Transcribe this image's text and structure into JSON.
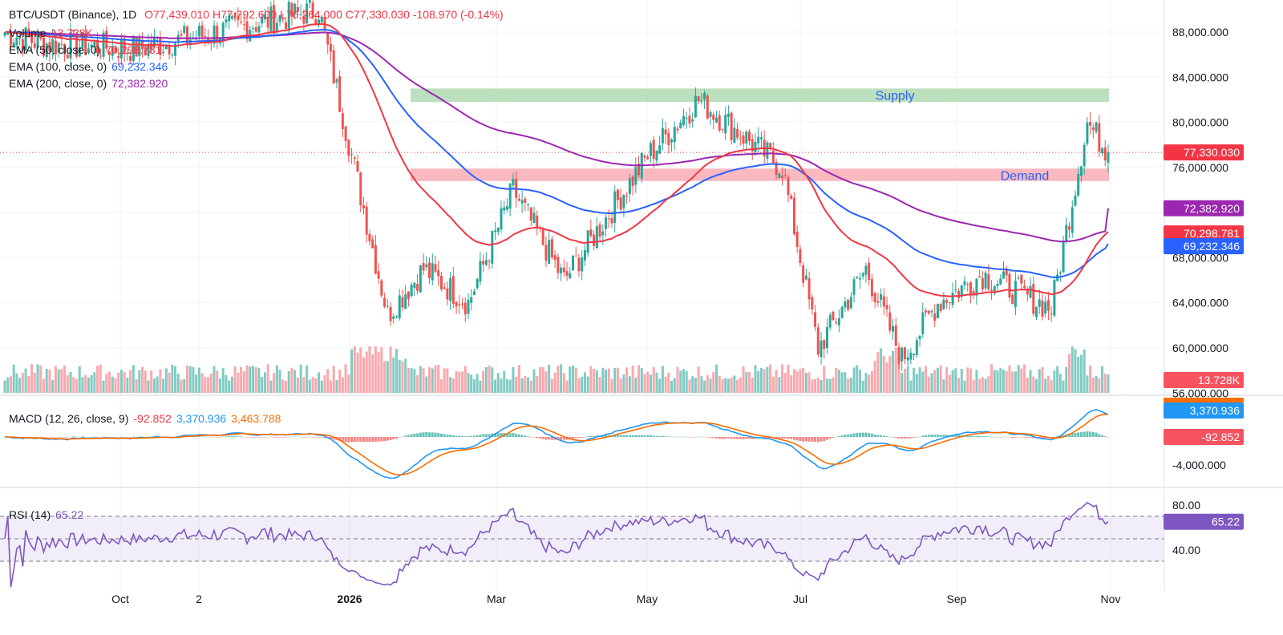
{
  "header": {
    "symbol": "BTC/USDT (Binance), 1D",
    "ohlc": "O77,439.010  H77,792.600  L76,264.000  C77,330.030  -108.970 (-0.14%)"
  },
  "colors": {
    "up": "#26a69a",
    "down": "#ef5350",
    "ema50": "#f23645",
    "ema100": "#2962ff",
    "ema200": "#9c27b0",
    "macd": "#2196f3",
    "signal": "#ff6d00",
    "rsi": "#7e57c2",
    "supply": "#a5d6a7",
    "demand": "#f7a1a9"
  },
  "legend": {
    "volume": {
      "label": "Volume",
      "value": "13.728K"
    },
    "ema50": {
      "label": "EMA (50, close, 0)",
      "value": "70,298.781"
    },
    "ema100": {
      "label": "EMA (100, close, 0)",
      "value": "69,232.346"
    },
    "ema200": {
      "label": "EMA (200, close, 0)",
      "value": "72,382.920"
    },
    "macd": {
      "label": "MACD (12, 26, close, 9)",
      "hist": "-92.852",
      "macd": "3,370.936",
      "signal": "3,463.788"
    },
    "rsi": {
      "label": "RSI (14)",
      "value": "65.22"
    }
  },
  "price_axis": {
    "ticks": [
      "88,000.000",
      "84,000.000",
      "80,000.000",
      "76,000.000",
      "68,000.000",
      "64,000.000",
      "60,000.000",
      "56,000.000"
    ],
    "badges": {
      "last": "77,330.030",
      "ema200": "72,382.920",
      "ema50": "70,298.781",
      "ema100": "69,232.346",
      "volume": "13.728K"
    }
  },
  "macd_axis": {
    "ticks": [
      "-4,000.000"
    ],
    "badges": {
      "macd": "3,370.936",
      "hist": "-92.852"
    }
  },
  "rsi_axis": {
    "ticks": [
      "80.00",
      "40.00"
    ],
    "badge": "65.22"
  },
  "zones": {
    "supply": "Supply",
    "demand": "Demand"
  },
  "x_labels": [
    "Oct",
    "2",
    "2026",
    "Mar",
    "May",
    "Jul",
    "Sep",
    "Nov"
  ],
  "chart_data": [
    {
      "type": "candlestick",
      "title": "BTC/USDT (Binance), 1D",
      "ylim": [
        55000,
        90500
      ],
      "last_close": 77330.03,
      "key_points": [
        {
          "date": "late Sep",
          "close": 88000
        },
        {
          "date": "early Oct",
          "close": 87000
        },
        {
          "date": "Nov",
          "close": 86500
        },
        {
          "date": "mid Jan",
          "close": 90000
        },
        {
          "date": "early Feb",
          "close": 63000
        },
        {
          "date": "mid Feb",
          "close": 67000
        },
        {
          "date": "late Feb",
          "close": 64000
        },
        {
          "date": "mid Mar",
          "close": 74000
        },
        {
          "date": "early Apr",
          "close": 66000
        },
        {
          "date": "late Apr",
          "close": 77000
        },
        {
          "date": "early May",
          "close": 82000
        },
        {
          "date": "late May",
          "close": 76000
        },
        {
          "date": "early Jun",
          "close": 60000
        },
        {
          "date": "mid Jun",
          "close": 67000
        },
        {
          "date": "late Jun",
          "close": 59000
        },
        {
          "date": "early Jul",
          "close": 64000
        },
        {
          "date": "mid Jul",
          "close": 66500
        },
        {
          "date": "mid Aug",
          "close": 63500
        },
        {
          "date": "late Aug",
          "close": 80000
        },
        {
          "date": "Sep",
          "close": 77330
        }
      ],
      "zones": [
        {
          "name": "Supply",
          "range": [
            81800,
            83000
          ]
        },
        {
          "name": "Demand",
          "range": [
            74800,
            75900
          ]
        }
      ],
      "series": [
        {
          "name": "EMA (50, close, 0)",
          "last": 70298.781
        },
        {
          "name": "EMA (100, close, 0)",
          "last": 69232.346
        },
        {
          "name": "EMA (200, close, 0)",
          "last": 72382.92
        }
      ]
    },
    {
      "type": "bar",
      "title": "Volume",
      "last": "13.728K"
    },
    {
      "type": "line",
      "title": "MACD (12, 26, close, 9)",
      "series": [
        {
          "name": "MACD",
          "last": 3370.936
        },
        {
          "name": "Signal",
          "last": 3463.788
        },
        {
          "name": "Histogram",
          "last": -92.852
        }
      ]
    },
    {
      "type": "line",
      "title": "RSI (14)",
      "ylim": [
        20,
        90
      ],
      "bands": [
        70,
        50,
        30
      ],
      "series": [
        {
          "name": "RSI (14)",
          "last": 65.22
        }
      ]
    }
  ]
}
